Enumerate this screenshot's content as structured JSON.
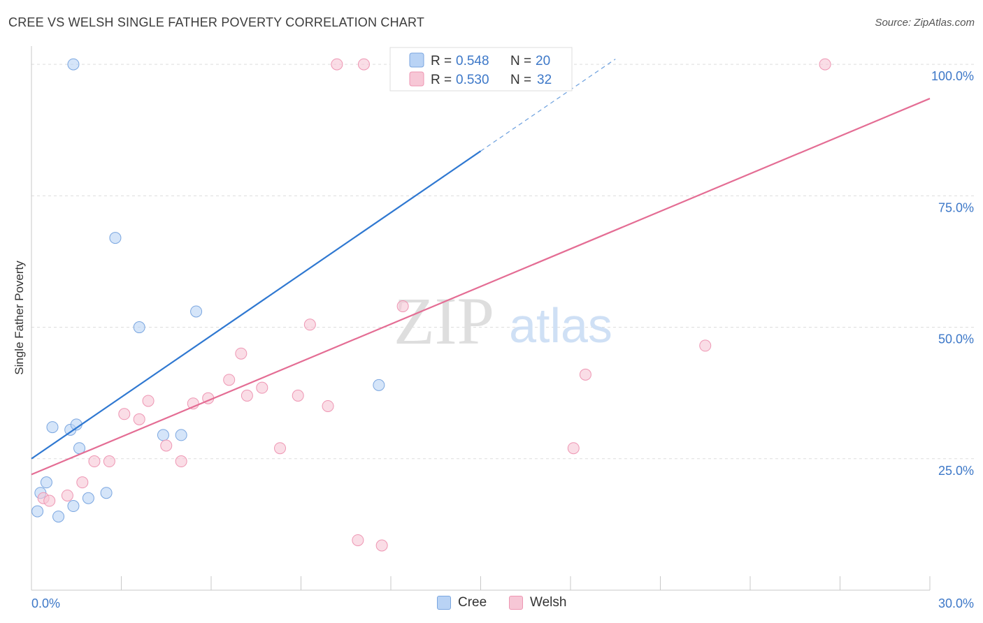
{
  "title": "CREE VS WELSH SINGLE FATHER POVERTY CORRELATION CHART",
  "source": "Source: ZipAtlas.com",
  "watermark": {
    "zip": "ZIP",
    "atlas": "atlas"
  },
  "colors": {
    "cree_fill": "#b9d3f5",
    "cree_stroke": "#7aa6e0",
    "cree_line": "#2f78d1",
    "welsh_fill": "#f7c7d6",
    "welsh_stroke": "#ee96b3",
    "welsh_line": "#e46d94",
    "axis_label": "#3d78c8",
    "grid": "#dddddd"
  },
  "legend": {
    "cree": {
      "r_label": "R =",
      "r_value": "0.548",
      "n_label": "N =",
      "n_value": "20"
    },
    "welsh": {
      "r_label": "R =",
      "r_value": "0.530",
      "n_label": "N =",
      "n_value": "32"
    }
  },
  "chart_data": {
    "type": "scatter",
    "xlabel": "",
    "ylabel": "Single Father Poverty",
    "xlim": [
      0,
      30
    ],
    "ylim": [
      0,
      104
    ],
    "x_tick_labels": [
      {
        "value": 0,
        "label": "0.0%"
      },
      {
        "value": 30,
        "label": "30.0%"
      }
    ],
    "y_tick_labels": [
      {
        "value": 25,
        "label": "25.0%"
      },
      {
        "value": 50,
        "label": "50.0%"
      },
      {
        "value": 75,
        "label": "75.0%"
      },
      {
        "value": 100,
        "label": "100.0%"
      }
    ],
    "legend_placement": "top-center",
    "grid": true,
    "series": [
      {
        "name": "Cree",
        "points": [
          [
            1.4,
            100
          ],
          [
            12.2,
            100
          ],
          [
            13.5,
            100
          ],
          [
            2.8,
            67
          ],
          [
            3.6,
            50
          ],
          [
            5.5,
            53
          ],
          [
            11.6,
            39
          ],
          [
            0.7,
            31
          ],
          [
            1.3,
            30.5
          ],
          [
            1.5,
            31.5
          ],
          [
            1.6,
            27
          ],
          [
            4.4,
            29.5
          ],
          [
            5.0,
            29.5
          ],
          [
            0.5,
            20.5
          ],
          [
            0.3,
            18.5
          ],
          [
            2.5,
            18.5
          ],
          [
            1.9,
            17.5
          ],
          [
            1.4,
            16
          ],
          [
            0.2,
            15
          ],
          [
            0.9,
            14
          ]
        ],
        "trend": {
          "x0": 0,
          "y0": 25,
          "x1": 15,
          "y1": 83.5,
          "dashed_to_x": 19.5,
          "dashed_to_y": 101
        }
      },
      {
        "name": "Welsh",
        "points": [
          [
            10.2,
            100
          ],
          [
            11.1,
            100
          ],
          [
            12.3,
            100
          ],
          [
            14.0,
            100
          ],
          [
            26.5,
            100
          ],
          [
            12.4,
            54
          ],
          [
            9.3,
            50.5
          ],
          [
            22.5,
            46.5
          ],
          [
            7.0,
            45
          ],
          [
            18.5,
            41
          ],
          [
            6.6,
            40
          ],
          [
            7.7,
            38.5
          ],
          [
            3.9,
            36
          ],
          [
            5.4,
            35.5
          ],
          [
            5.9,
            36.5
          ],
          [
            7.2,
            37
          ],
          [
            8.9,
            37
          ],
          [
            9.9,
            35
          ],
          [
            3.1,
            33.5
          ],
          [
            3.6,
            32.5
          ],
          [
            4.5,
            27.5
          ],
          [
            8.3,
            27
          ],
          [
            18.1,
            27
          ],
          [
            2.1,
            24.5
          ],
          [
            2.6,
            24.5
          ],
          [
            5.0,
            24.5
          ],
          [
            1.7,
            20.5
          ],
          [
            1.2,
            18
          ],
          [
            0.4,
            17.5
          ],
          [
            0.6,
            17
          ],
          [
            10.9,
            9.5
          ],
          [
            11.7,
            8.5
          ]
        ],
        "trend": {
          "x0": 0,
          "y0": 22,
          "x1": 30,
          "y1": 93.5
        }
      }
    ]
  }
}
